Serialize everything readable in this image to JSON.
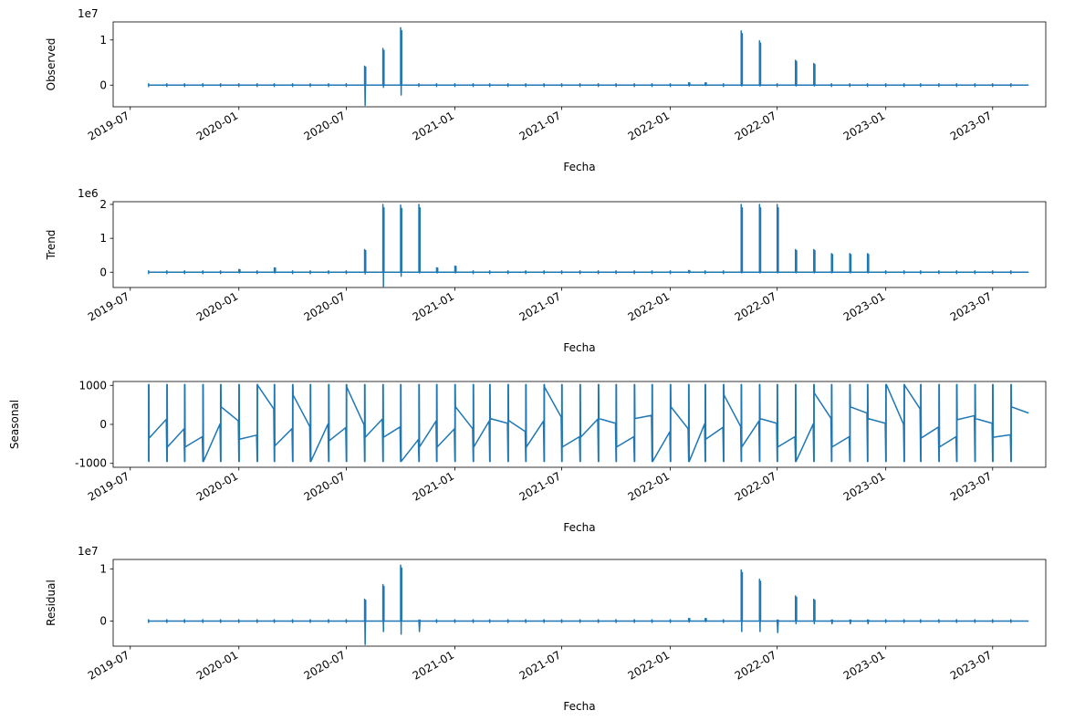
{
  "chart_data": [
    {
      "type": "line",
      "ylabel": "Observed",
      "xlabel": "Fecha",
      "offset_text": "1e7",
      "y_scale": 10000000,
      "ylim": [
        -0.48,
        1.4
      ],
      "yticks": [
        0,
        1
      ],
      "xlim": [
        "2019-06-02",
        "2023-09-29"
      ],
      "x_ticks": [
        "2019-07",
        "2020-01",
        "2020-07",
        "2021-01",
        "2021-07",
        "2022-01",
        "2022-07",
        "2023-01",
        "2023-07"
      ],
      "line_color": "#1f77b4",
      "baseline": 0,
      "spikes": [
        {
          "x": "2020-08-01",
          "lo": -0.45,
          "hi": 0.42
        },
        {
          "x": "2020-09-01",
          "lo": -0.05,
          "hi": 0.81
        },
        {
          "x": "2020-10-01",
          "lo": -0.22,
          "hi": 1.27
        },
        {
          "x": "2022-02-01",
          "lo": -0.02,
          "hi": 0.05
        },
        {
          "x": "2022-03-01",
          "lo": -0.01,
          "hi": 0.05
        },
        {
          "x": "2022-05-01",
          "lo": -0.02,
          "hi": 1.2
        },
        {
          "x": "2022-06-01",
          "lo": -0.02,
          "hi": 0.98
        },
        {
          "x": "2022-08-01",
          "lo": -0.02,
          "hi": 0.55
        },
        {
          "x": "2022-09-01",
          "lo": -0.02,
          "hi": 0.48
        }
      ]
    },
    {
      "type": "line",
      "ylabel": "Trend",
      "xlabel": "Fecha",
      "offset_text": "1e6",
      "y_scale": 1000000,
      "ylim": [
        -0.45,
        2.08
      ],
      "yticks": [
        0,
        1,
        2
      ],
      "xlim": [
        "2019-06-02",
        "2023-09-29"
      ],
      "x_ticks": [
        "2019-07",
        "2020-01",
        "2020-07",
        "2021-01",
        "2021-07",
        "2022-01",
        "2022-07",
        "2023-01",
        "2023-07"
      ],
      "line_color": "#1f77b4",
      "baseline": 0,
      "spikes": [
        {
          "x": "2020-01-01",
          "lo": -0.02,
          "hi": 0.08
        },
        {
          "x": "2020-03-01",
          "lo": -0.02,
          "hi": 0.13
        },
        {
          "x": "2020-08-01",
          "lo": -0.05,
          "hi": 0.67
        },
        {
          "x": "2020-09-01",
          "lo": -0.42,
          "hi": 2.0
        },
        {
          "x": "2020-10-01",
          "lo": -0.12,
          "hi": 1.98
        },
        {
          "x": "2020-11-01",
          "lo": -0.02,
          "hi": 2.0
        },
        {
          "x": "2020-12-01",
          "lo": -0.02,
          "hi": 0.13
        },
        {
          "x": "2021-01-01",
          "lo": -0.02,
          "hi": 0.18
        },
        {
          "x": "2022-02-01",
          "lo": -0.02,
          "hi": 0.05
        },
        {
          "x": "2022-05-01",
          "lo": -0.02,
          "hi": 2.0
        },
        {
          "x": "2022-06-01",
          "lo": -0.02,
          "hi": 2.0
        },
        {
          "x": "2022-07-01",
          "lo": -0.02,
          "hi": 2.0
        },
        {
          "x": "2022-08-01",
          "lo": -0.02,
          "hi": 0.67
        },
        {
          "x": "2022-09-01",
          "lo": -0.02,
          "hi": 0.67
        },
        {
          "x": "2022-10-01",
          "lo": -0.02,
          "hi": 0.55
        },
        {
          "x": "2022-11-01",
          "lo": -0.02,
          "hi": 0.55
        },
        {
          "x": "2022-12-01",
          "lo": -0.02,
          "hi": 0.55
        }
      ]
    },
    {
      "type": "line",
      "ylabel": "Seasonal",
      "xlabel": "Fecha",
      "offset_text": "",
      "y_scale": 1,
      "ylim": [
        -1100,
        1100
      ],
      "yticks": [
        -1000,
        0,
        1000
      ],
      "xlim": [
        "2019-06-02",
        "2023-09-29"
      ],
      "x_ticks": [
        "2019-07",
        "2020-01",
        "2020-07",
        "2021-01",
        "2021-07",
        "2022-01",
        "2022-07",
        "2023-01",
        "2023-07"
      ],
      "line_color": "#1f77b4",
      "seasonal_max": 1020,
      "seasonal_min": -950,
      "month_end_values": [
        -350,
        -580,
        -580,
        -950,
        450,
        -380,
        1000,
        -550,
        750,
        -950,
        -420,
        950,
        -330,
        -330,
        -950,
        -580,
        -580,
        450,
        -580,
        150,
        100,
        -580,
        950,
        -580,
        -330,
        150,
        -580,
        150,
        -950,
        450,
        -950,
        -380,
        750,
        -580,
        150,
        -580,
        -950,
        800,
        -580,
        450,
        150,
        1020,
        1000,
        -350,
        -580,
        120,
        150,
        -330,
        450,
        -950,
        150,
        1000,
        950,
        -580,
        -350,
        120,
        750,
        -580
      ]
    },
    {
      "type": "line",
      "ylabel": "Residual",
      "xlabel": "Fecha",
      "offset_text": "1e7",
      "y_scale": 10000000,
      "ylim": [
        -0.48,
        1.18
      ],
      "yticks": [
        0,
        1
      ],
      "xlim": [
        "2019-06-02",
        "2023-09-29"
      ],
      "x_ticks": [
        "2019-07",
        "2020-01",
        "2020-07",
        "2021-01",
        "2021-07",
        "2022-01",
        "2022-07",
        "2023-01",
        "2023-07"
      ],
      "line_color": "#1f77b4",
      "baseline": 0,
      "spikes": [
        {
          "x": "2020-08-01",
          "lo": -0.45,
          "hi": 0.42
        },
        {
          "x": "2020-09-01",
          "lo": -0.2,
          "hi": 0.7
        },
        {
          "x": "2020-10-01",
          "lo": -0.25,
          "hi": 1.07
        },
        {
          "x": "2020-11-01",
          "lo": -0.2,
          "hi": 0.02
        },
        {
          "x": "2022-02-01",
          "lo": -0.02,
          "hi": 0.05
        },
        {
          "x": "2022-03-01",
          "lo": -0.01,
          "hi": 0.05
        },
        {
          "x": "2022-05-01",
          "lo": -0.2,
          "hi": 0.98
        },
        {
          "x": "2022-06-01",
          "lo": -0.2,
          "hi": 0.8
        },
        {
          "x": "2022-07-01",
          "lo": -0.22,
          "hi": 0.02
        },
        {
          "x": "2022-08-01",
          "lo": -0.05,
          "hi": 0.48
        },
        {
          "x": "2022-09-01",
          "lo": -0.05,
          "hi": 0.42
        },
        {
          "x": "2022-10-01",
          "lo": -0.05,
          "hi": 0.02
        },
        {
          "x": "2022-11-01",
          "lo": -0.05,
          "hi": 0.02
        },
        {
          "x": "2022-12-01",
          "lo": -0.05,
          "hi": 0.02
        }
      ]
    }
  ]
}
